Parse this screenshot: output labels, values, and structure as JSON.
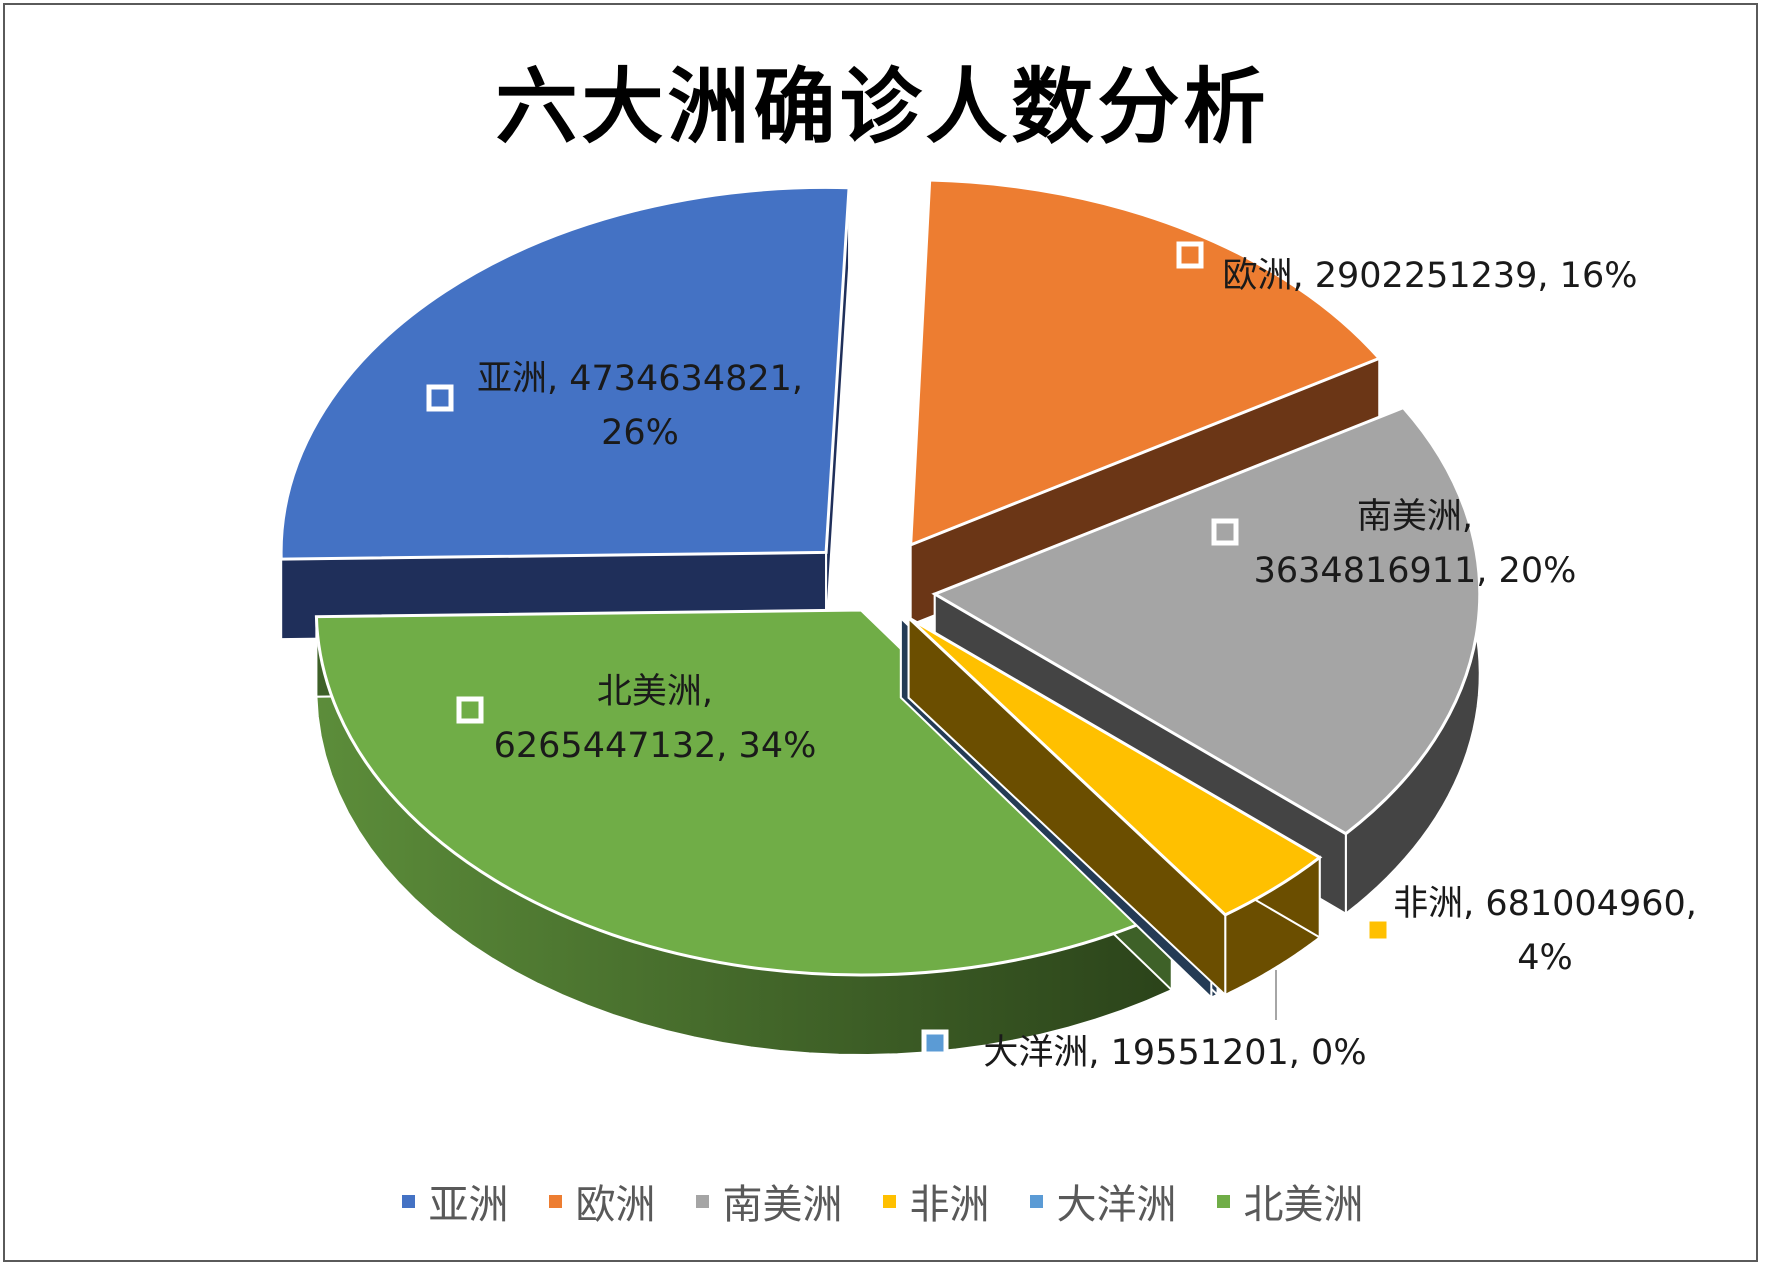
{
  "chart_data": {
    "type": "pie",
    "title": "六大洲确诊人数分析",
    "slices": [
      {
        "name": "亚洲",
        "value": 4734634821,
        "percent": "26%",
        "color": "#4472c4",
        "side_color": "#1f2f5a",
        "label": "亚洲, 4734634821, 26%",
        "label_lines": [
          "亚洲, 4734634821,",
          "26%"
        ]
      },
      {
        "name": "欧洲",
        "value": 2902251239,
        "percent": "16%",
        "color": "#ed7d31",
        "side_color": "#6b3616",
        "label": "欧洲, 2902251239, 16%",
        "label_lines": [
          "欧洲, 2902251239, 16%"
        ]
      },
      {
        "name": "南美洲",
        "value": 3634816911,
        "percent": "20%",
        "color": "#a5a5a5",
        "side_color": "#444444",
        "label": "南美洲, 3634816911, 20%",
        "label_lines": [
          "南美洲,",
          "3634816911, 20%"
        ]
      },
      {
        "name": "非洲",
        "value": 681004960,
        "percent": "4%",
        "color": "#ffc000",
        "side_color": "#6b4e00",
        "label": "非洲, 681004960, 4%",
        "label_lines": [
          "非洲, 681004960,",
          "4%"
        ]
      },
      {
        "name": "大洋洲",
        "value": 19551201,
        "percent": "0%",
        "color": "#5b9bd5",
        "side_color": "#243b55",
        "label": "大洋洲, 19551201, 0%",
        "label_lines": [
          "大洋洲, 19551201, 0%"
        ]
      },
      {
        "name": "北美洲",
        "value": 6265447132,
        "percent": "34%",
        "color": "#70ad47",
        "side_color": "#3e6128",
        "label": "北美洲, 6265447132, 34%",
        "label_lines": [
          "北美洲,",
          "6265447132, 34%"
        ]
      }
    ],
    "legend": {
      "position": "bottom",
      "entries": [
        "亚洲",
        "欧洲",
        "南美洲",
        "非洲",
        "大洋洲",
        "北美洲"
      ]
    }
  }
}
